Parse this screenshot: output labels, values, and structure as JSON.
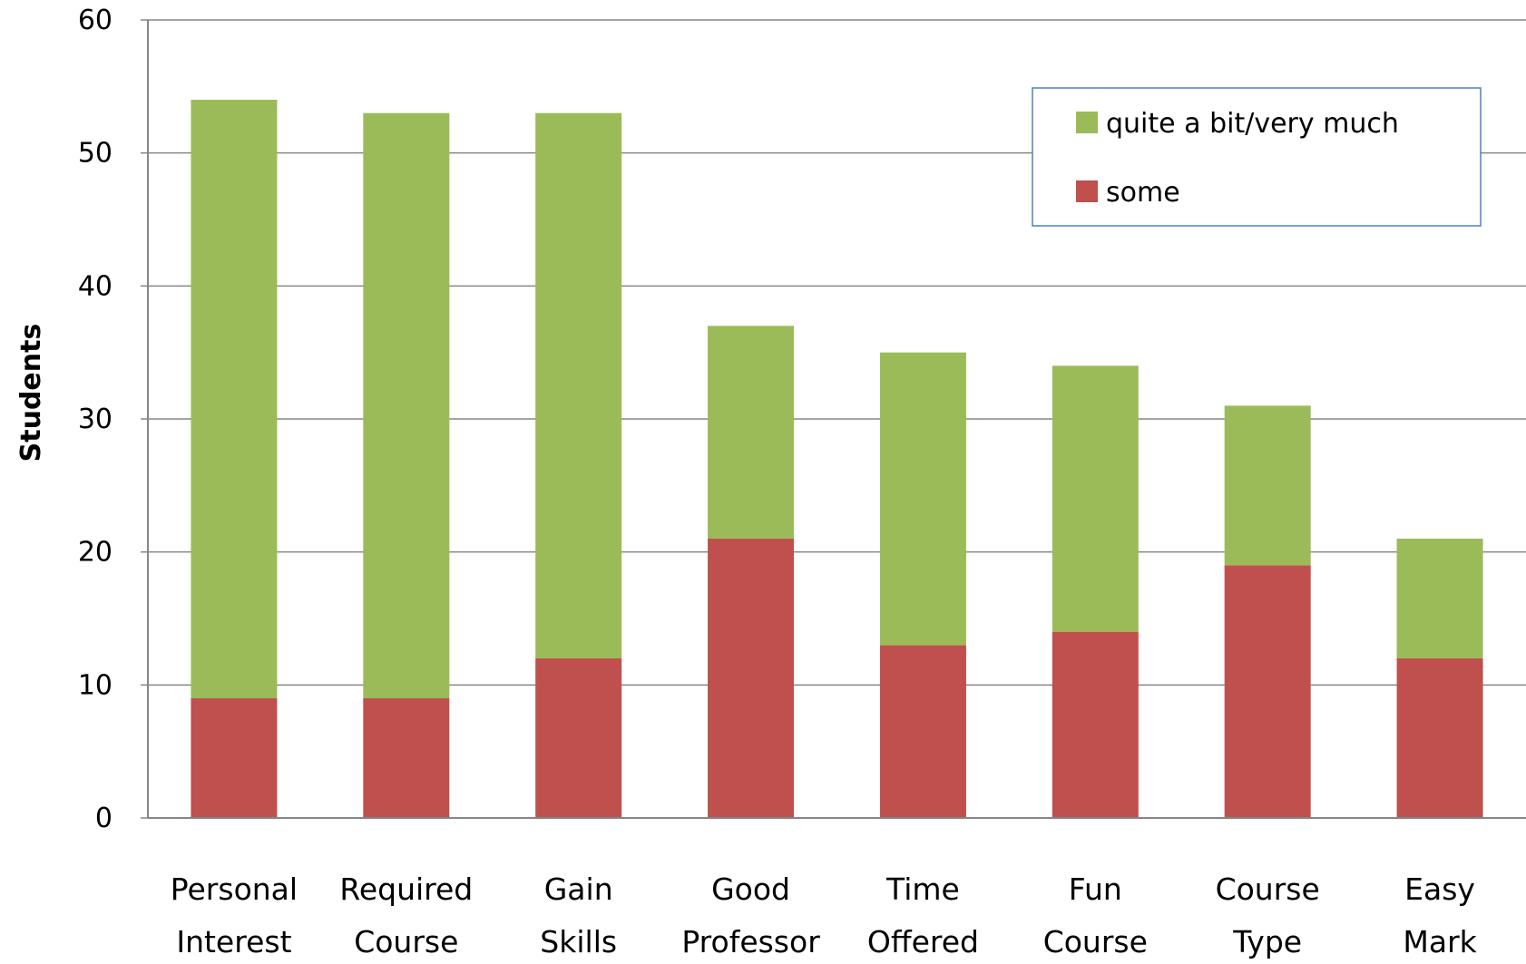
{
  "chart_data": {
    "type": "bar",
    "stacked": true,
    "title": "",
    "xlabel": "",
    "ylabel": "Students",
    "ylim": [
      0,
      60
    ],
    "yticks": [
      0,
      10,
      20,
      30,
      40,
      50,
      60
    ],
    "grid": true,
    "legend_position": "top-right",
    "categories": [
      [
        "Personal",
        "Interest"
      ],
      [
        "Required",
        "Course"
      ],
      [
        "Gain",
        "Skills"
      ],
      [
        "Good",
        "Professor"
      ],
      [
        "Time",
        "Offered"
      ],
      [
        "Fun",
        "Course"
      ],
      [
        "Course",
        "Type"
      ],
      [
        "Easy",
        "Mark"
      ]
    ],
    "series": [
      {
        "name": "some",
        "color": "#C0504D",
        "values": [
          9,
          9,
          12,
          21,
          13,
          14,
          19,
          12
        ]
      },
      {
        "name": "quite a bit/very much",
        "color": "#9BBB59",
        "values": [
          45,
          44,
          41,
          16,
          22,
          20,
          12,
          9
        ]
      }
    ],
    "legend_order": [
      "quite a bit/very much",
      "some"
    ]
  }
}
